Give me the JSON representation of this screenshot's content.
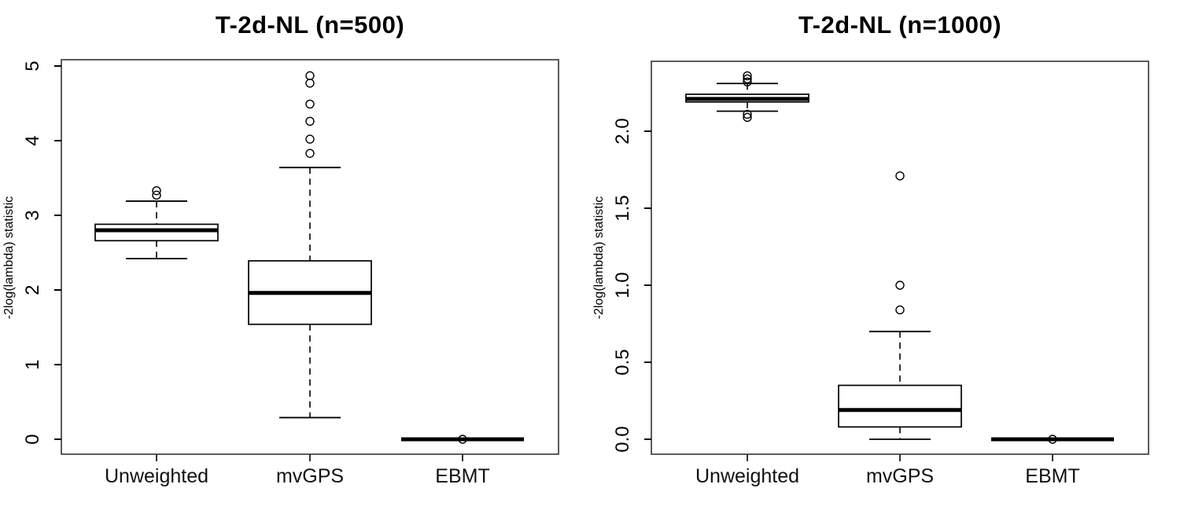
{
  "figure": {
    "background": "#ffffff",
    "foreground": "#000000",
    "frame_color": "#333333"
  },
  "chart_data": [
    {
      "type": "boxplot",
      "title": "T-2d-NL (n=500)",
      "ylabel": "-2log(lambda) statistic",
      "categories": [
        "Unweighted",
        "mvGPS",
        "EBMT"
      ],
      "ylim": [
        0,
        5
      ],
      "yticks": [
        0,
        1,
        2,
        3,
        4,
        5
      ],
      "ytick_labels": [
        "0",
        "1",
        "2",
        "3",
        "4",
        "5"
      ],
      "grid": false,
      "legend": "none",
      "series": [
        {
          "name": "Unweighted",
          "whisker_low": 2.42,
          "q1": 2.66,
          "median": 2.8,
          "q3": 2.88,
          "whisker_high": 3.19,
          "outliers": [
            3.27,
            3.33
          ]
        },
        {
          "name": "mvGPS",
          "whisker_low": 0.29,
          "q1": 1.54,
          "median": 1.96,
          "q3": 2.39,
          "whisker_high": 3.64,
          "outliers": [
            3.83,
            4.02,
            4.26,
            4.49,
            4.77,
            4.87
          ]
        },
        {
          "name": "EBMT",
          "whisker_low": 0,
          "q1": 0,
          "median": 0,
          "q3": 0,
          "whisker_high": 0,
          "outliers": [
            0
          ]
        }
      ]
    },
    {
      "type": "boxplot",
      "title": "T-2d-NL (n=1000)",
      "ylabel": "-2log(lambda) statistic",
      "categories": [
        "Unweighted",
        "mvGPS",
        "EBMT"
      ],
      "ylim": [
        0,
        2.4
      ],
      "yticks": [
        0.0,
        0.5,
        1.0,
        1.5,
        2.0
      ],
      "ytick_labels": [
        "0.0",
        "0.5",
        "1.0",
        "1.5",
        "2.0"
      ],
      "grid": false,
      "legend": "none",
      "series": [
        {
          "name": "Unweighted",
          "whisker_low": 2.13,
          "q1": 2.19,
          "median": 2.21,
          "q3": 2.24,
          "whisker_high": 2.31,
          "outliers": [
            2.09,
            2.11,
            2.32,
            2.34,
            2.36
          ]
        },
        {
          "name": "mvGPS",
          "whisker_low": 0.0,
          "q1": 0.08,
          "median": 0.19,
          "q3": 0.35,
          "whisker_high": 0.7,
          "outliers": [
            0.84,
            1.0,
            1.71
          ]
        },
        {
          "name": "EBMT",
          "whisker_low": 0,
          "q1": 0,
          "median": 0,
          "q3": 0,
          "whisker_high": 0,
          "outliers": [
            0
          ]
        }
      ]
    }
  ]
}
